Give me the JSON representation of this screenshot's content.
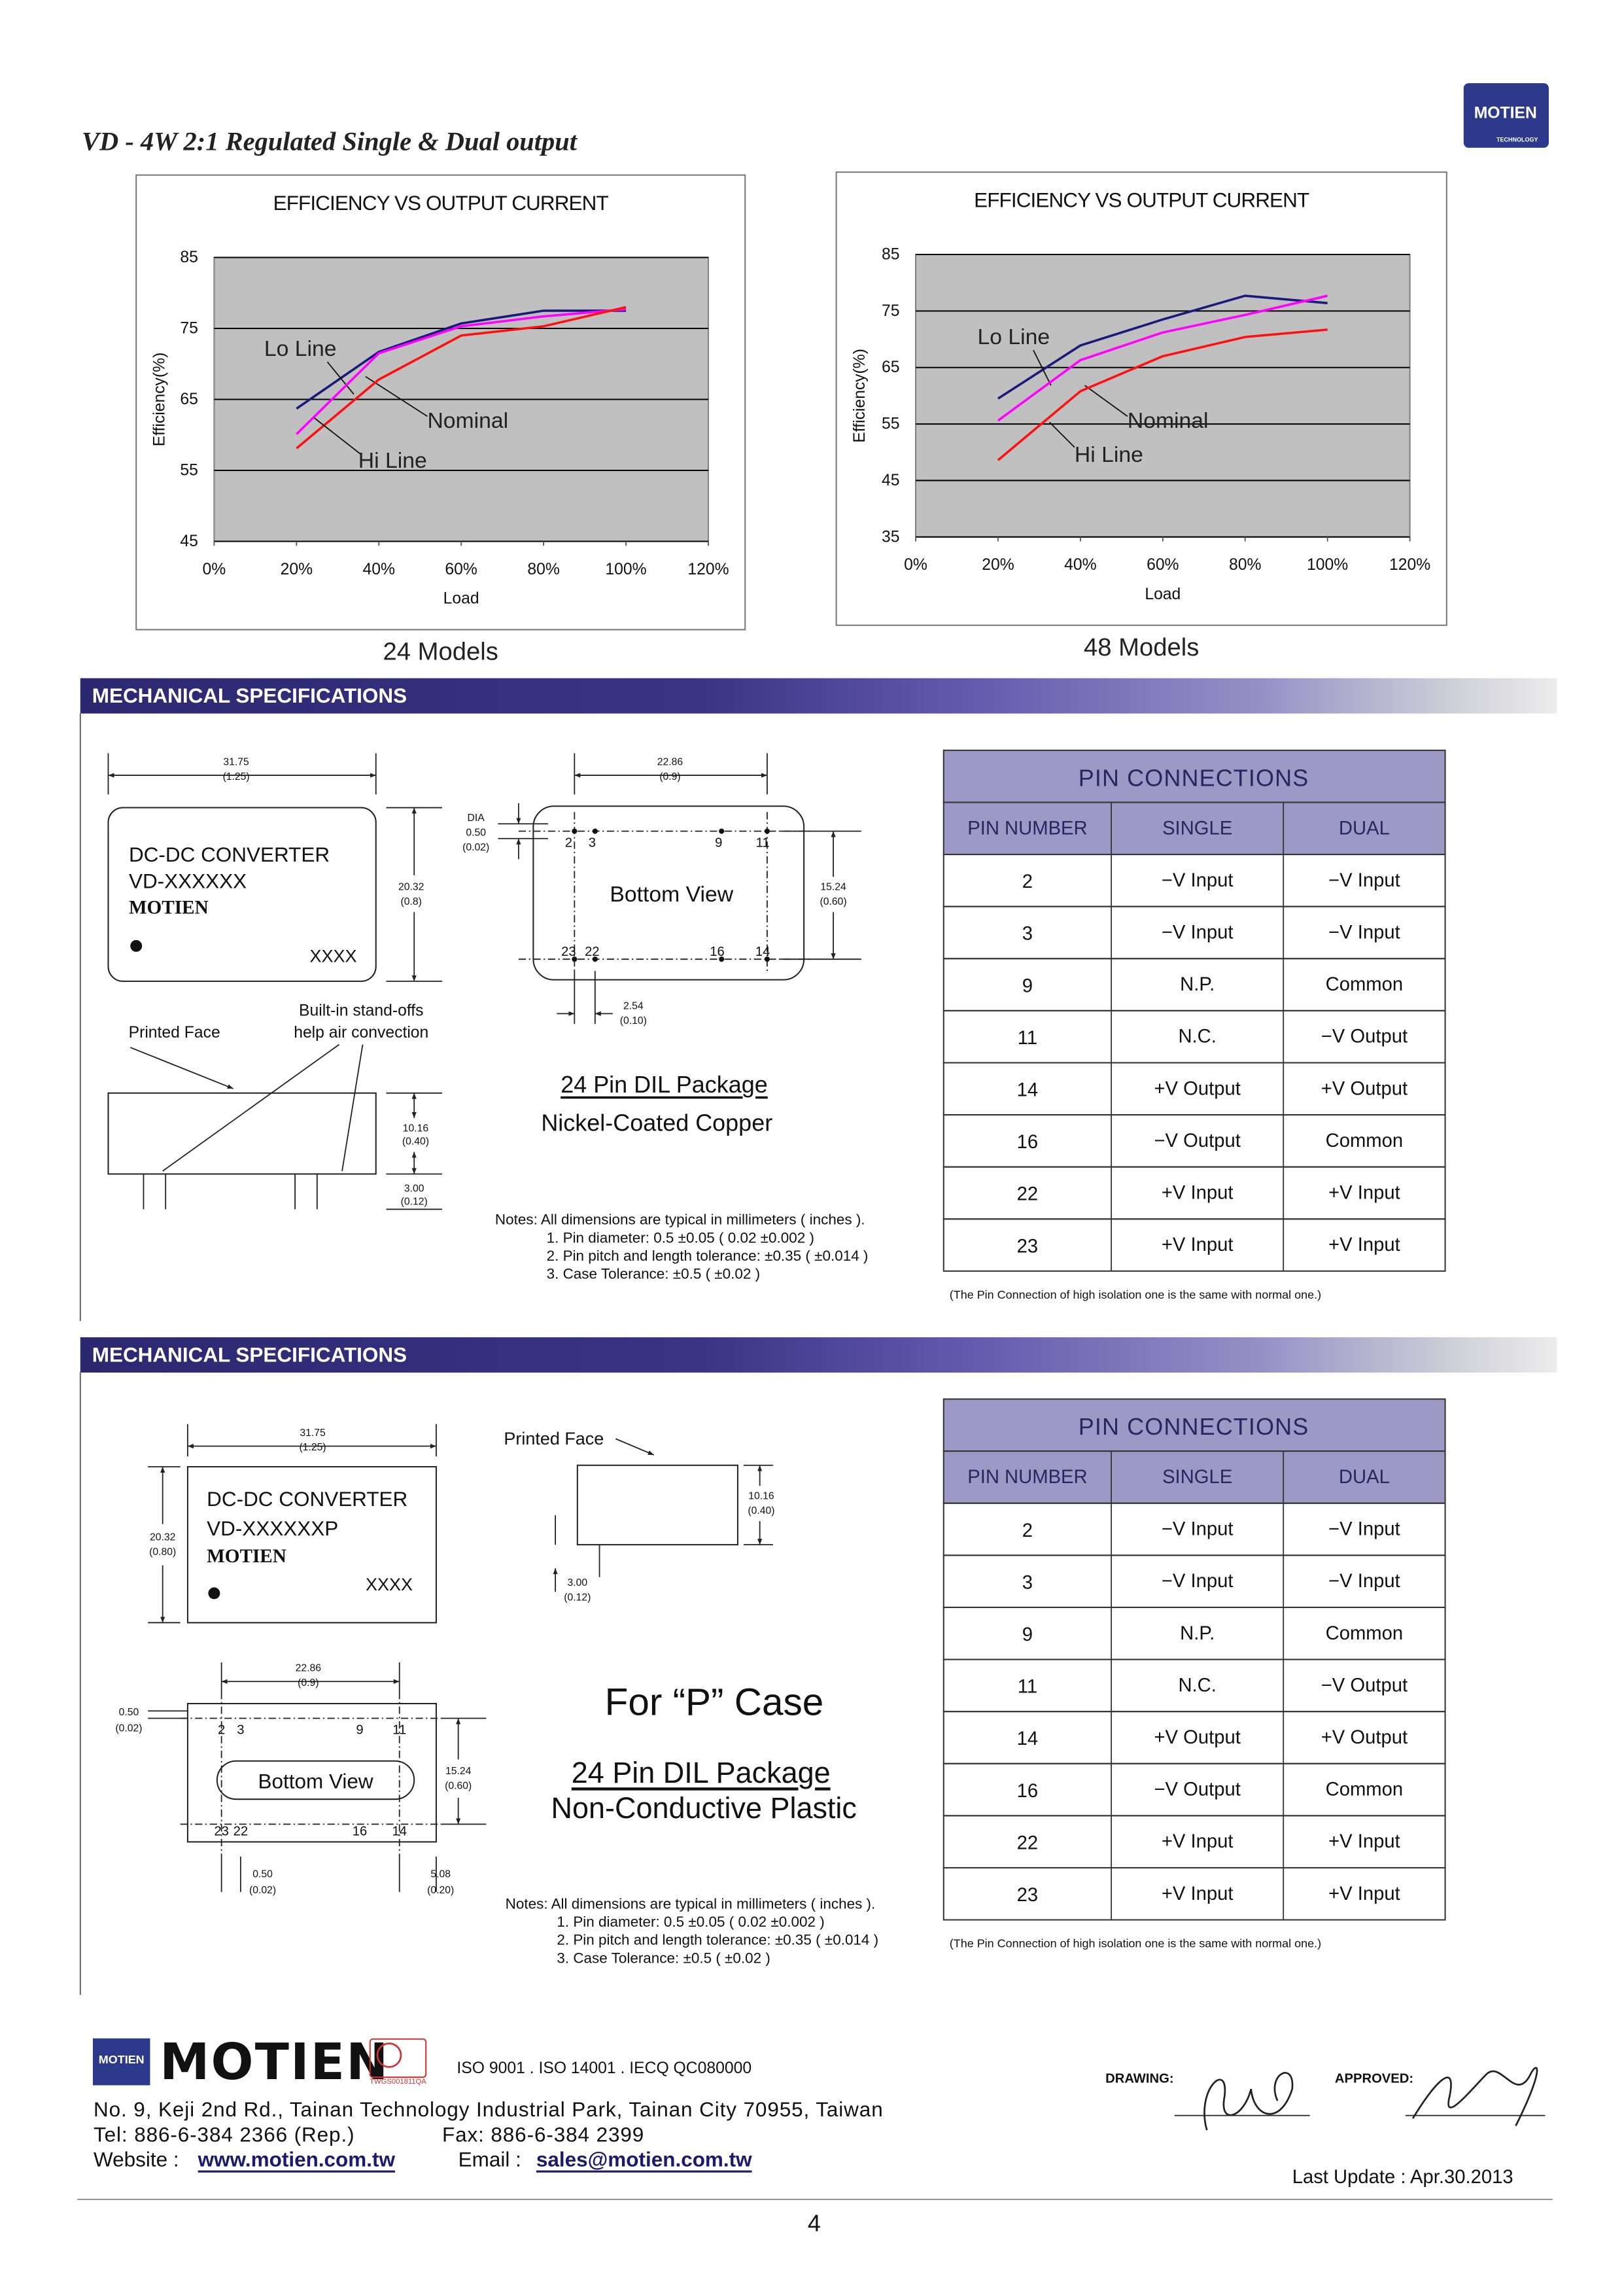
{
  "header": {
    "title": "VD - 4W 2:1 Regulated Single & Dual output",
    "logo": "MOTIEN",
    "logo_sub": "TECHNOLOGY"
  },
  "chart_data": [
    {
      "type": "line",
      "title": "EFFICIENCY VS OUTPUT CURRENT",
      "x_label": "Load",
      "y_label": "Efficiency(%)",
      "caption": "24 Models",
      "x": [
        20,
        40,
        60,
        80,
        100
      ],
      "xlim": [
        0,
        120
      ],
      "xticks": [
        {
          "value": 0,
          "label": "0%"
        },
        {
          "value": 20,
          "label": "20%"
        },
        {
          "value": 40,
          "label": "40%"
        },
        {
          "value": 60,
          "label": "60%"
        },
        {
          "value": 80,
          "label": "80%"
        },
        {
          "value": 100,
          "label": "100%"
        },
        {
          "value": 120,
          "label": "120%"
        }
      ],
      "ylim": [
        45,
        85
      ],
      "yticks": [
        45,
        55,
        65,
        75,
        85
      ],
      "grid": true,
      "series": [
        {
          "name": "Lo Line",
          "color": "#1a1a7a",
          "values": [
            63.7,
            71.7,
            75.7,
            77.5,
            77.5
          ]
        },
        {
          "name": "Nominal",
          "color": "#ff00ff",
          "values": [
            60.1,
            71.5,
            75.3,
            76.7,
            77.7
          ]
        },
        {
          "name": "Hi Line",
          "color": "#ff1010",
          "values": [
            58.1,
            67.8,
            74.0,
            75.3,
            78.0
          ]
        }
      ]
    },
    {
      "type": "line",
      "title": "EFFICIENCY VS OUTPUT CURRENT",
      "x_label": "Load",
      "y_label": "Efficiency(%)",
      "caption": "48 Models",
      "x": [
        20,
        40,
        60,
        80,
        100
      ],
      "xlim": [
        0,
        120
      ],
      "xticks": [
        {
          "value": 0,
          "label": "0%"
        },
        {
          "value": 20,
          "label": "20%"
        },
        {
          "value": 40,
          "label": "40%"
        },
        {
          "value": 60,
          "label": "60%"
        },
        {
          "value": 80,
          "label": "80%"
        },
        {
          "value": 100,
          "label": "100%"
        },
        {
          "value": 120,
          "label": "120%"
        }
      ],
      "ylim": [
        35,
        85
      ],
      "yticks": [
        35,
        45,
        55,
        65,
        75,
        85
      ],
      "grid": true,
      "series": [
        {
          "name": "Lo Line",
          "color": "#1a1a7a",
          "values": [
            59.5,
            68.9,
            73.5,
            77.7,
            76.4
          ]
        },
        {
          "name": "Nominal",
          "color": "#ff00ff",
          "values": [
            55.6,
            66.3,
            71.2,
            74.3,
            77.7
          ]
        },
        {
          "name": "Hi Line",
          "color": "#ff1010",
          "values": [
            48.6,
            60.8,
            67.0,
            70.4,
            71.7
          ]
        }
      ]
    }
  ],
  "mech1": {
    "heading": "MECHANICAL SPECIFICATIONS",
    "drawing_labels": [
      "31.75",
      "(1.25)",
      "DC-DC CONVERTER",
      "VD-XXXXXX",
      "MOTIEN",
      "XXXX",
      "20.32",
      "(0.8)",
      "Printed Face",
      "Built-in stand-offs",
      "help air convection",
      "10.16",
      "(0.40)",
      "3.00",
      "(0.12)",
      "22.86",
      "(0.9)",
      "DIA",
      "0.50",
      "(0.02)",
      "2",
      "3",
      "9",
      "11",
      "23",
      "22",
      "16",
      "14",
      "Bottom View",
      "15.24",
      "(0.60)",
      "2.54",
      "(0.10)"
    ],
    "package_title": "24 Pin DIL Package",
    "package_material": "Nickel-Coated Copper",
    "notes": [
      "Notes: All dimensions are typical in millimeters ( inches ).",
      "1.  Pin diameter: 0.5 ±0.05 ( 0.02 ±0.002 )",
      "2.  Pin pitch and length tolerance:  ±0.35 ( ±0.014 )",
      "3.  Case Tolerance: ±0.5 ( ±0.02 )"
    ],
    "pins": {
      "title": "PIN CONNECTIONS",
      "headers": [
        "PIN NUMBER",
        "SINGLE",
        "DUAL"
      ],
      "rows": [
        [
          "2",
          "−V Input",
          "−V Input"
        ],
        [
          "3",
          "−V Input",
          "−V Input"
        ],
        [
          "9",
          "N.P.",
          "Common"
        ],
        [
          "11",
          "N.C.",
          "−V Output"
        ],
        [
          "14",
          "+V Output",
          "+V Output"
        ],
        [
          "16",
          "−V Output",
          "Common"
        ],
        [
          "22",
          "+V Input",
          "+V Input"
        ],
        [
          "23",
          "+V Input",
          "+V Input"
        ]
      ],
      "footnote": "(The Pin Connection of high isolation one is the same with normal one.)"
    }
  },
  "mech2": {
    "heading": "MECHANICAL SPECIFICATIONS",
    "drawing_labels": [
      "31.75",
      "(1.25)",
      "DC-DC CONVERTER",
      "VD-XXXXXXP",
      "MOTIEN",
      "XXXX",
      "20.32",
      "(0.80)",
      "Printed Face",
      "10.16",
      "(0.40)",
      "3.00",
      "(0.12)",
      "22.86",
      "(0.9)",
      "0.50",
      "(0.02)",
      "2",
      "3",
      "9",
      "11",
      "23",
      "22",
      "16",
      "14",
      "Bottom  View",
      "15.24",
      "(0.60)",
      "0.50",
      "(0.02)",
      "5.08",
      "(0.20)"
    ],
    "case_label": "For “P” Case",
    "package_title": "24 Pin DIL Package",
    "package_material": "Non-Conductive Plastic",
    "notes": [
      "Notes: All dimensions are typical in millimeters ( inches ).",
      "1.  Pin diameter: 0.5 ±0.05 ( 0.02 ±0.002 )",
      "2.  Pin pitch and length tolerance:  ±0.35 ( ±0.014 )",
      "3.  Case Tolerance: ±0.5 ( ±0.02 )"
    ],
    "pins": {
      "title": "PIN CONNECTIONS",
      "headers": [
        "PIN NUMBER",
        "SINGLE",
        "DUAL"
      ],
      "rows": [
        [
          "2",
          "−V Input",
          "−V Input"
        ],
        [
          "3",
          "−V Input",
          "−V Input"
        ],
        [
          "9",
          "N.P.",
          "Common"
        ],
        [
          "11",
          "N.C.",
          "−V Output"
        ],
        [
          "14",
          "+V Output",
          "+V Output"
        ],
        [
          "16",
          "−V Output",
          "Common"
        ],
        [
          "22",
          "+V Input",
          "+V Input"
        ],
        [
          "23",
          "+V Input",
          "+V Input"
        ]
      ],
      "footnote": "(The Pin Connection of high isolation one is the same with normal one.)"
    }
  },
  "footer": {
    "logo_mark": "MOTIEN",
    "brand": "MOTIEN",
    "cert_code": "TWGS001811QA",
    "certifications": "ISO 9001 . ISO 14001 . IECQ QC080000",
    "address": "No. 9, Keji 2nd Rd., Tainan Technology Industrial Park, Tainan City 70955, Taiwan",
    "tel": "Tel: 886-6-384 2366 (Rep.)",
    "fax": "Fax: 886-6-384 2399",
    "website_label": "Website :",
    "website": "www.motien.com.tw",
    "email_label": "Email :",
    "email": "sales@motien.com.tw",
    "drawing": "DRAWING:",
    "approved": "APPROVED:",
    "last_update": "Last Update : Apr.30.2013",
    "page": "4"
  }
}
